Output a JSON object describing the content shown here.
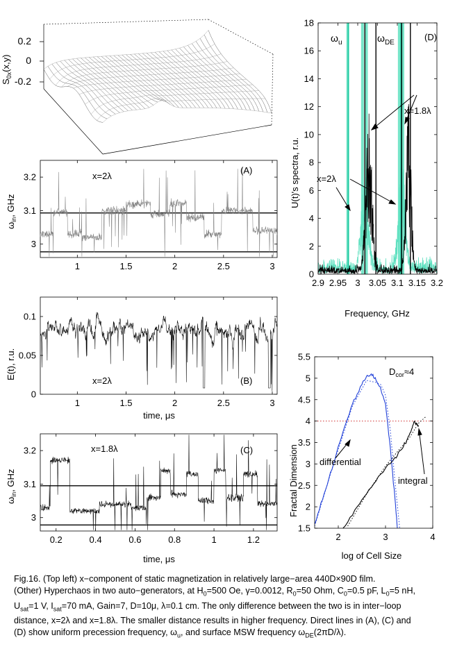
{
  "chart_data": [
    {
      "id": "surface",
      "type": "surface",
      "zlabel": "S0x(x,y)",
      "zlabel_main": "S",
      "zlabel_sub": "0x",
      "zlabel_tail": "(x,y)",
      "zticks": [
        "0.2",
        "0",
        "-0.2"
      ],
      "zlim": [
        -0.2,
        0.2
      ]
    },
    {
      "id": "A",
      "type": "line",
      "panel_label": "(A)",
      "annotation": "x=2λ",
      "ylabel": "ωin, GHz",
      "ylabel_main": "ω",
      "ylabel_sub": "in",
      "ylabel_tail": ", GHz",
      "xlim": [
        0.62,
        3.05
      ],
      "ylim": [
        2.96,
        3.25
      ],
      "xticks": [
        1,
        1.5,
        2,
        2.5,
        3
      ],
      "xtick_labels": [
        "1",
        "1.5",
        "2",
        "2.5",
        "3"
      ],
      "yticks": [
        3,
        3.1,
        3.2
      ],
      "ytick_labels": [
        "3",
        "3.1",
        "3.2"
      ],
      "hlines": [
        3.093,
        2.977
      ],
      "series_color": "#808080",
      "segments": [
        {
          "from": 0.62,
          "to": 0.75,
          "level": 3.03
        },
        {
          "from": 0.75,
          "to": 0.9,
          "level": 3.095
        },
        {
          "from": 0.9,
          "to": 1.05,
          "level": 3.03
        },
        {
          "from": 1.05,
          "to": 1.25,
          "level": 3.02
        },
        {
          "from": 1.25,
          "to": 1.5,
          "level": 3.1
        },
        {
          "from": 1.5,
          "to": 1.75,
          "level": 3.12
        },
        {
          "from": 1.75,
          "to": 1.95,
          "level": 3.09
        },
        {
          "from": 1.95,
          "to": 2.12,
          "level": 3.12
        },
        {
          "from": 2.12,
          "to": 2.3,
          "level": 3.08
        },
        {
          "from": 2.3,
          "to": 2.48,
          "level": 3.03
        },
        {
          "from": 2.48,
          "to": 2.8,
          "level": 3.1
        },
        {
          "from": 2.8,
          "to": 3.05,
          "level": 3.04
        }
      ]
    },
    {
      "id": "B",
      "type": "line",
      "panel_label": "(B)",
      "annotation": "x=2λ",
      "ylabel": "E(t), r.u.",
      "xlabel": "time, μs",
      "xlim": [
        0.62,
        3.05
      ],
      "ylim": [
        0,
        0.125
      ],
      "xticks": [
        1,
        1.5,
        2,
        2.5,
        3
      ],
      "xtick_labels": [
        "1",
        "1.5",
        "2",
        "2.5",
        "3"
      ],
      "yticks": [
        0,
        0.05,
        0.1
      ],
      "ytick_labels": [
        "0",
        "0.05",
        "0.1"
      ],
      "series_color": "#000000",
      "mean_level": 0.082
    },
    {
      "id": "C",
      "type": "line",
      "panel_label": "(C)",
      "annotation": "x=1.8λ",
      "ylabel": "ωin, GHz",
      "ylabel_main": "ω",
      "ylabel_sub": "in",
      "ylabel_tail": ", GHz",
      "xlabel": "time, μs",
      "xlim": [
        0.12,
        1.32
      ],
      "ylim": [
        2.96,
        3.25
      ],
      "xticks": [
        0.2,
        0.4,
        0.6,
        0.8,
        1,
        1.2
      ],
      "xtick_labels": [
        "0.2",
        "0.4",
        "0.6",
        "0.8",
        "1",
        "1.2"
      ],
      "yticks": [
        3,
        3.1,
        3.2
      ],
      "ytick_labels": [
        "3",
        "3.1",
        "3.2"
      ],
      "hlines": [
        3.095,
        2.978
      ],
      "series_color": "#000000",
      "segments": [
        {
          "from": 0.12,
          "to": 0.17,
          "level": 3.03
        },
        {
          "from": 0.17,
          "to": 0.27,
          "level": 3.17
        },
        {
          "from": 0.27,
          "to": 0.42,
          "level": 3.02
        },
        {
          "from": 0.42,
          "to": 0.58,
          "level": 3.04
        },
        {
          "from": 0.58,
          "to": 0.66,
          "level": 3.03
        },
        {
          "from": 0.66,
          "to": 0.73,
          "level": 3.06
        },
        {
          "from": 0.73,
          "to": 0.78,
          "level": 3.14
        },
        {
          "from": 0.78,
          "to": 0.86,
          "level": 3.07
        },
        {
          "from": 0.86,
          "to": 0.92,
          "level": 3.13
        },
        {
          "from": 0.92,
          "to": 1.0,
          "level": 3.05
        },
        {
          "from": 1.0,
          "to": 1.06,
          "level": 3.14
        },
        {
          "from": 1.06,
          "to": 1.15,
          "level": 3.06
        },
        {
          "from": 1.15,
          "to": 1.22,
          "level": 3.13
        },
        {
          "from": 1.22,
          "to": 1.32,
          "level": 3.04
        }
      ]
    },
    {
      "id": "D",
      "type": "line",
      "panel_label": "(D)",
      "xlabel": "Frequency, GHz",
      "ylabel": "U(t)'s spectra, r.u.",
      "xlim": [
        2.9,
        3.2
      ],
      "ylim": [
        0,
        18
      ],
      "xticks": [
        2.9,
        2.95,
        3,
        3.05,
        3.1,
        3.15,
        3.2
      ],
      "xtick_labels": [
        "2.9",
        "2.95",
        "3",
        "3.05",
        "3.1",
        "3.15",
        "3.2"
      ],
      "yticks": [
        0,
        2,
        4,
        6,
        8,
        10,
        12,
        14,
        16,
        18
      ],
      "ytick_labels": [
        "0",
        "2",
        "4",
        "6",
        "8",
        "10",
        "12",
        "14",
        "16",
        "18"
      ],
      "omega_u_label": "ωu",
      "omega_u_main": "ω",
      "omega_u_sub": "u",
      "omega_de_label": "ωDE",
      "omega_de_main": "ω",
      "omega_de_sub": "DE",
      "omega_u_freq": 2.976,
      "omega_de_freq": 3.109,
      "annotation_1": "x=1.8λ",
      "annotation_2": "x=2λ",
      "series": [
        {
          "name": "x=1.8λ",
          "color": "#000000",
          "peaks": [
            {
              "center": 3.028,
              "width": 0.011,
              "height": 9.5
            },
            {
              "center": 3.128,
              "width": 0.009,
              "height": 11.0
            }
          ]
        },
        {
          "name": "x=2λ",
          "color": "#5fe0c0",
          "peaks": [
            {
              "center": 3.018,
              "width": 0.013,
              "height": 6.0
            },
            {
              "center": 3.112,
              "width": 0.012,
              "height": 7.0
            }
          ]
        }
      ],
      "tall_lines_black": [
        3.018,
        3.046,
        3.111,
        3.133
      ],
      "tall_lines_cyan": [
        2.975,
        3.012,
        3.022,
        3.105,
        3.114
      ]
    },
    {
      "id": "fractal",
      "type": "line",
      "xlabel": "log of Cell Size",
      "ylabel": "Fractal Dimension",
      "xlim": [
        1.5,
        4
      ],
      "ylim": [
        1.5,
        5.5
      ],
      "xticks": [
        2,
        3,
        4
      ],
      "xtick_labels": [
        "2",
        "3",
        "4"
      ],
      "yticks": [
        1.5,
        2,
        2.5,
        3,
        3.5,
        4,
        4.5,
        5,
        5.5
      ],
      "ytick_labels": [
        "1.5",
        "2",
        "2.5",
        "3",
        "3.5",
        "4",
        "4.5",
        "5",
        "5.5"
      ],
      "dcor_label": "Dcor≈4",
      "dcor_main": "D",
      "dcor_sub": "cor",
      "dcor_tail": "≈4",
      "reference_level": 4,
      "annotations": [
        "differential",
        "integral"
      ],
      "series": [
        {
          "name": "differential",
          "color": "#1f3fd8",
          "x": [
            1.5,
            1.7,
            1.9,
            2.1,
            2.3,
            2.5,
            2.6,
            2.7,
            2.8,
            2.9,
            3.0,
            3.1,
            3.2,
            3.25
          ],
          "y": [
            1.6,
            2.3,
            3.0,
            3.75,
            4.4,
            4.85,
            5.05,
            5.1,
            4.95,
            4.75,
            4.4,
            3.4,
            2.2,
            1.5
          ]
        },
        {
          "name": "integral",
          "color": "#000000",
          "x": [
            2.1,
            2.4,
            2.7,
            3.0,
            3.2,
            3.35,
            3.45,
            3.55,
            3.6,
            3.65,
            3.7
          ],
          "y": [
            1.5,
            2.0,
            2.45,
            2.9,
            3.15,
            3.35,
            3.55,
            3.8,
            3.98,
            3.95,
            3.9
          ]
        },
        {
          "name": "differential (fit)",
          "color": "#1f3fd8",
          "style": "dotted",
          "x": [
            1.5,
            1.9,
            2.3,
            2.6,
            2.8,
            2.9,
            3.0,
            3.1,
            3.2,
            3.3
          ],
          "y": [
            1.55,
            3.0,
            4.35,
            4.95,
            4.9,
            4.85,
            4.6,
            3.8,
            2.6,
            1.5
          ]
        },
        {
          "name": "integral (fit)",
          "color": "#000000",
          "style": "dotted",
          "x": [
            2.2,
            2.6,
            3.0,
            3.3,
            3.5,
            3.7,
            3.85
          ],
          "y": [
            1.55,
            2.3,
            2.95,
            3.35,
            3.6,
            3.95,
            4.1
          ]
        }
      ]
    }
  ],
  "caption": {
    "line1": "Fig.16. (Top left) x−component of static magnetization in relatively large−area 440D×90D film.",
    "line2": "(Other) Hyperchaos in two auto−generators, at H0=500 Oe, γ=0.0012, R0=50 Ohm, C0=0.5 pF, L0=5 nH,",
    "line3": "Usat=1 V, Isat=70 mA, Gain=7, D=10μ, λ=0.1 cm. The only difference between the two is in inter−loop",
    "line4": "distance, x=2λ and x=1.8λ. The smaller distance results in higher frequency. Direct lines in (A), (C) and",
    "line5": "(D) show uniform precession frequency, ωu, and surface MSW frequency ωDE(2πD/λ)."
  }
}
